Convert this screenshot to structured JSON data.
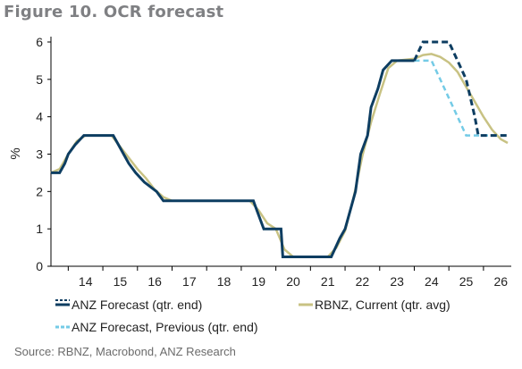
{
  "figure_title": "Figure 10. OCR forecast",
  "source": "Source: RBNZ, Macrobond, ANZ Research",
  "colors": {
    "anz_forecast": "#0d3d61",
    "rbnz_current": "#c8c283",
    "anz_previous": "#74cbe6",
    "axis": "#000000"
  },
  "legend": {
    "anz_forecast": "ANZ Forecast (qtr. end)",
    "rbnz_current": "RBNZ, Current (qtr. avg)",
    "anz_previous": "ANZ Forecast, Previous (qtr. end)"
  },
  "chart_data": {
    "type": "line",
    "title": "Figure 10. OCR forecast",
    "xlabel": "",
    "ylabel": "%",
    "xlim": [
      2013.5,
      2026.7
    ],
    "ylim": [
      0,
      6
    ],
    "yticks": [
      0,
      1,
      2,
      3,
      4,
      5,
      6
    ],
    "xtick_labels": [
      "14",
      "15",
      "16",
      "17",
      "18",
      "19",
      "20",
      "21",
      "22",
      "23",
      "24",
      "25",
      "26"
    ],
    "grid": false,
    "legend_position": "bottom",
    "series": [
      {
        "name": "ANZ Forecast (qtr. end)",
        "key": "anz_forecast",
        "style": "solid-then-dashed",
        "step": true,
        "points": [
          [
            2013.5,
            2.5
          ],
          [
            2013.75,
            2.5
          ],
          [
            2013.9,
            2.75
          ],
          [
            2014.0,
            3.0
          ],
          [
            2014.2,
            3.25
          ],
          [
            2014.45,
            3.5
          ],
          [
            2015.3,
            3.5
          ],
          [
            2015.45,
            3.25
          ],
          [
            2015.6,
            3.0
          ],
          [
            2015.75,
            2.75
          ],
          [
            2015.95,
            2.5
          ],
          [
            2016.2,
            2.25
          ],
          [
            2016.55,
            2.0
          ],
          [
            2016.75,
            1.75
          ],
          [
            2019.35,
            1.75
          ],
          [
            2019.45,
            1.5
          ],
          [
            2019.65,
            1.0
          ],
          [
            2020.15,
            1.0
          ],
          [
            2020.2,
            0.25
          ],
          [
            2021.6,
            0.25
          ],
          [
            2021.85,
            0.75
          ],
          [
            2022.0,
            1.0
          ],
          [
            2022.15,
            1.5
          ],
          [
            2022.3,
            2.0
          ],
          [
            2022.45,
            3.0
          ],
          [
            2022.65,
            3.5
          ],
          [
            2022.75,
            4.25
          ],
          [
            2022.95,
            4.75
          ],
          [
            2023.1,
            5.25
          ],
          [
            2023.35,
            5.5
          ],
          [
            2024.0,
            5.5
          ],
          [
            2024.25,
            6.0
          ],
          [
            2025.0,
            6.0
          ],
          [
            2025.25,
            5.5
          ],
          [
            2025.5,
            5.0
          ],
          [
            2025.75,
            4.0
          ],
          [
            2025.85,
            3.5
          ],
          [
            2026.7,
            3.5
          ]
        ],
        "dashed_from_x": 2024.0
      },
      {
        "name": "RBNZ, Current (qtr. avg)",
        "key": "rbnz_current",
        "style": "solid",
        "step": false,
        "points": [
          [
            2013.5,
            2.5
          ],
          [
            2013.75,
            2.6
          ],
          [
            2014.0,
            3.0
          ],
          [
            2014.25,
            3.35
          ],
          [
            2014.5,
            3.5
          ],
          [
            2015.25,
            3.5
          ],
          [
            2015.5,
            3.2
          ],
          [
            2015.75,
            2.9
          ],
          [
            2016.0,
            2.6
          ],
          [
            2016.25,
            2.35
          ],
          [
            2016.5,
            2.05
          ],
          [
            2016.75,
            1.85
          ],
          [
            2017.0,
            1.75
          ],
          [
            2019.25,
            1.75
          ],
          [
            2019.5,
            1.5
          ],
          [
            2019.75,
            1.15
          ],
          [
            2020.0,
            1.0
          ],
          [
            2020.25,
            0.45
          ],
          [
            2020.5,
            0.25
          ],
          [
            2021.5,
            0.25
          ],
          [
            2021.75,
            0.5
          ],
          [
            2022.0,
            0.95
          ],
          [
            2022.25,
            1.85
          ],
          [
            2022.5,
            2.95
          ],
          [
            2022.75,
            3.85
          ],
          [
            2023.0,
            4.6
          ],
          [
            2023.25,
            5.3
          ],
          [
            2023.5,
            5.5
          ],
          [
            2024.0,
            5.55
          ],
          [
            2024.25,
            5.65
          ],
          [
            2024.5,
            5.68
          ],
          [
            2024.75,
            5.6
          ],
          [
            2025.0,
            5.45
          ],
          [
            2025.25,
            5.2
          ],
          [
            2025.5,
            4.8
          ],
          [
            2025.75,
            4.4
          ],
          [
            2026.0,
            4.0
          ],
          [
            2026.25,
            3.65
          ],
          [
            2026.5,
            3.4
          ],
          [
            2026.7,
            3.3
          ]
        ]
      },
      {
        "name": "ANZ Forecast, Previous (qtr. end)",
        "key": "anz_previous",
        "style": "dashed",
        "step": false,
        "points": [
          [
            2024.0,
            5.5
          ],
          [
            2024.5,
            5.5
          ],
          [
            2024.75,
            5.0
          ],
          [
            2025.0,
            4.5
          ],
          [
            2025.25,
            4.0
          ],
          [
            2025.5,
            3.5
          ],
          [
            2026.7,
            3.5
          ]
        ]
      }
    ]
  }
}
